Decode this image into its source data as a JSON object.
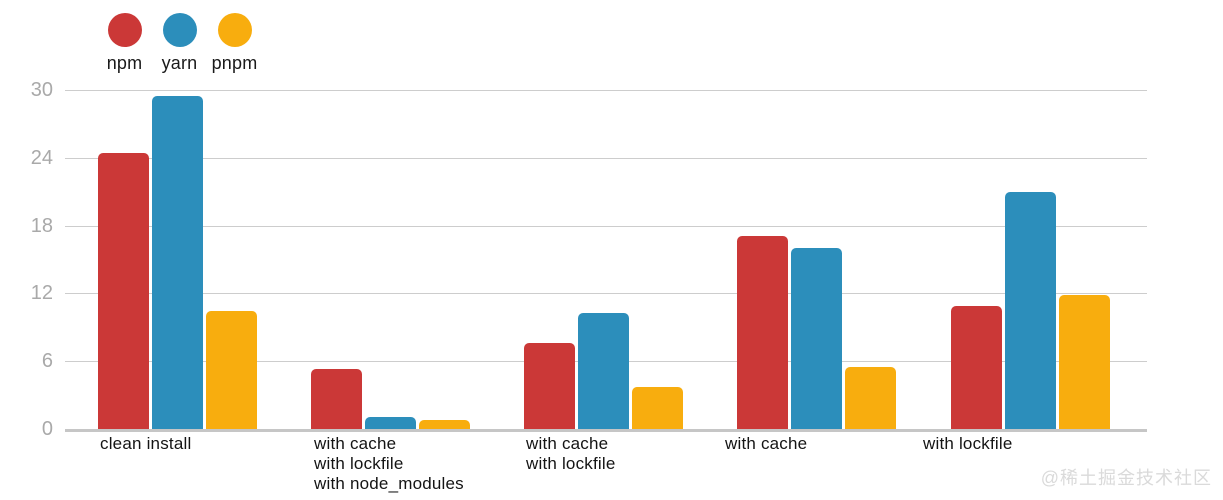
{
  "chart_data": {
    "type": "bar",
    "categories": [
      "clean install",
      "with cache\nwith lockfile\nwith node_modules",
      "with cache\nwith lockfile",
      "with cache",
      "with lockfile"
    ],
    "series": [
      {
        "name": "npm",
        "color": "#cb3837",
        "values": [
          24.4,
          5.3,
          7.6,
          17.1,
          10.9
        ]
      },
      {
        "name": "yarn",
        "color": "#2c8ebb",
        "values": [
          29.5,
          1.1,
          10.3,
          16.0,
          21.0
        ]
      },
      {
        "name": "pnpm",
        "color": "#f8ad0e",
        "values": [
          10.4,
          0.8,
          3.7,
          5.5,
          11.9
        ]
      }
    ],
    "ylim": [
      0,
      30
    ],
    "yticks": [
      0,
      6,
      12,
      18,
      24,
      30
    ],
    "grid": true,
    "legend_position": "top-left",
    "xlabel": "",
    "ylabel": ""
  },
  "colors": {
    "gridline": "#cdcdcd",
    "baseline": "#c6c6c6",
    "y_tick_text": "#a9a9a9",
    "x_tick_text": "#141414",
    "watermark_text": "#dadada"
  },
  "watermark": "@稀土掘金技术社区"
}
